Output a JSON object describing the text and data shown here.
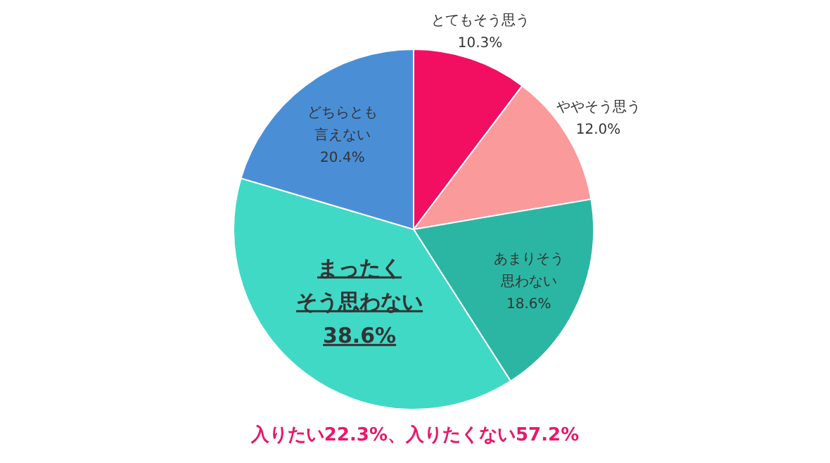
{
  "chart_data": {
    "type": "pie",
    "categories": [
      "とてもそう思う",
      "ややそう思う",
      "あまりそう思わない",
      "まったくそう思わない",
      "どちらとも言えない"
    ],
    "values": [
      10.3,
      12.0,
      18.6,
      38.6,
      20.4
    ],
    "colors": [
      "#f20f62",
      "#fa9a9a",
      "#2bb6a4",
      "#40d9c6",
      "#4a8fd6"
    ],
    "value_labels": [
      "10.3%",
      "12.0%",
      "18.6%",
      "38.6%",
      "20.4%"
    ],
    "annotations": [
      "入りたい22.3%、入りたくない57.2%"
    ]
  }
}
